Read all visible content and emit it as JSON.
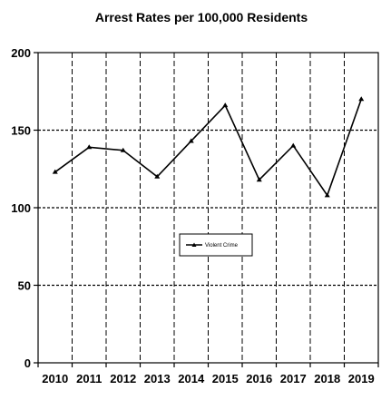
{
  "chart_data": {
    "type": "line",
    "title": "Arrest Rates per 100,000 Residents",
    "xlabel": "",
    "ylabel": "",
    "categories": [
      "2010",
      "2011",
      "2012",
      "2013",
      "2014",
      "2015",
      "2016",
      "2017",
      "2018",
      "2019"
    ],
    "series": [
      {
        "name": "Violent Crime",
        "values": [
          123,
          139,
          137,
          120,
          143,
          166,
          118,
          140,
          108,
          170
        ]
      }
    ],
    "ylim": [
      0,
      200
    ],
    "yticks": [
      "0",
      "50",
      "100",
      "150",
      "200"
    ],
    "grid": true,
    "legend_position": "center-right",
    "line_color": "#000000"
  }
}
